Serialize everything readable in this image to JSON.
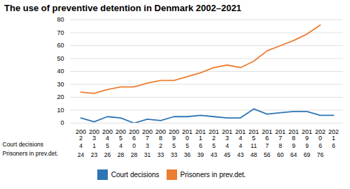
{
  "chart_data": {
    "type": "line",
    "title": "The use of preventive detention in Denmark 2002–2021",
    "categories": [
      "200\n2",
      "200\n3",
      "200\n4",
      "200\n5",
      "200\n6",
      "200\n7",
      "200\n8",
      "200\n9",
      "201\n0",
      "201\n1",
      "201\n2",
      "201\n3",
      "201\n4",
      "201\n5",
      "201\n6",
      "201\n7",
      "201\n8",
      "201\n9",
      "202\n0",
      "202\n1"
    ],
    "series": [
      {
        "name": "Court decisions",
        "color": "#2E75B6",
        "values": [
          4,
          1,
          5,
          4,
          0,
          3,
          2,
          5,
          5,
          6,
          5,
          4,
          4,
          11,
          7,
          8,
          9,
          9,
          6,
          6
        ]
      },
      {
        "name": "Prisoners in prev.det.",
        "color": "#ED7D31",
        "values": [
          24,
          23,
          26,
          28,
          28,
          31,
          33,
          33,
          36,
          39,
          43,
          45,
          43,
          48,
          56,
          60,
          64,
          69,
          76,
          null
        ]
      }
    ],
    "ylim": [
      0,
      80
    ],
    "yticks": [
      0,
      10,
      20,
      30,
      40,
      50,
      60,
      70,
      80
    ],
    "grid": true,
    "data_labels": true
  }
}
